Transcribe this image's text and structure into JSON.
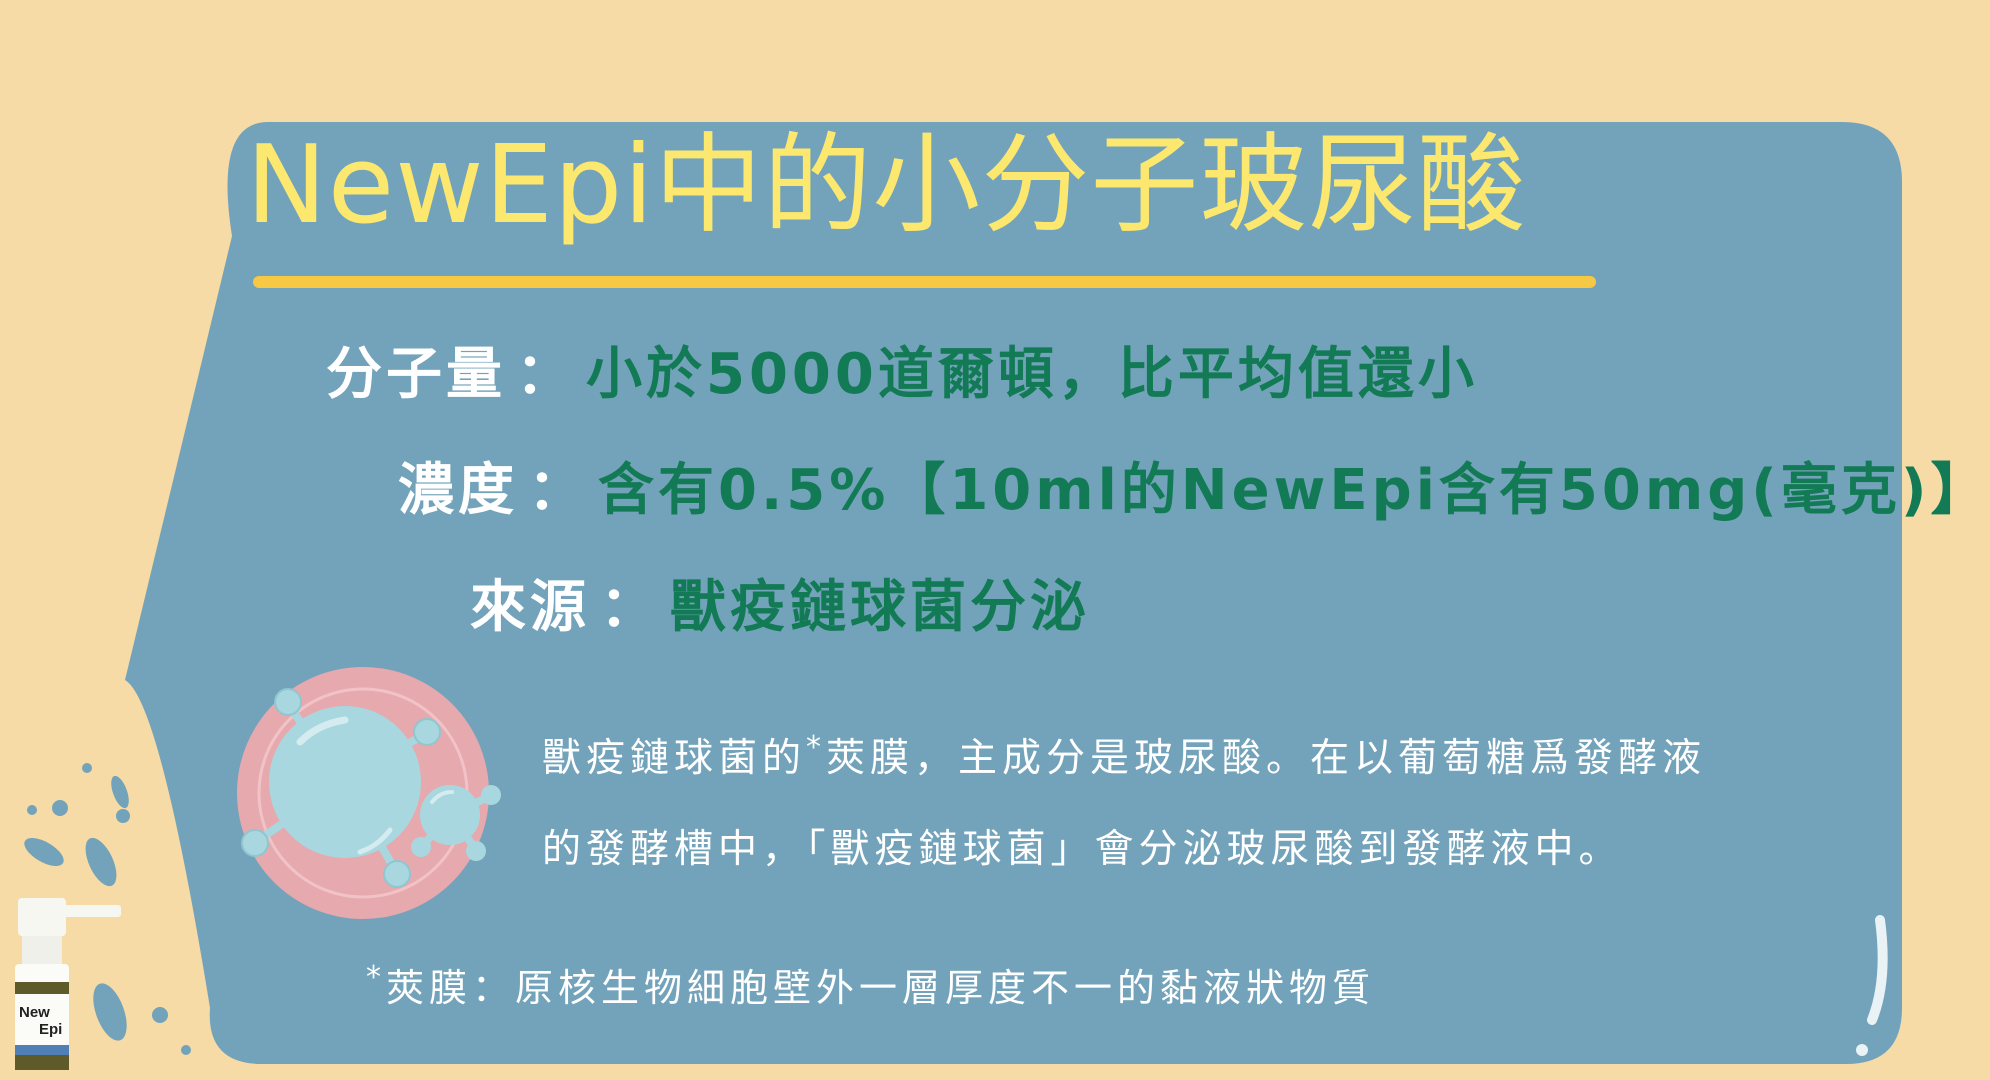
{
  "title": "NewEpi中的小分子玻尿酸",
  "specs": [
    {
      "label": "分子量",
      "sep": "：",
      "value": "小於5000道爾頓，比平均值還小"
    },
    {
      "label": "濃度",
      "sep": "：",
      "value": "含有0.5%【10ml的NewEpi含有50mg(毫克)】"
    },
    {
      "label": "來源",
      "sep": "：",
      "value": "獸疫鏈球菌分泌"
    }
  ],
  "description": {
    "line1_a": "獸疫鏈球菌的",
    "line1_star": "*",
    "line1_b": "莢膜，主成分是玻尿酸。在以葡萄糖爲發酵液",
    "line2": "的發酵槽中，「獸疫鏈球菌」會分泌玻尿酸到發酵液中。"
  },
  "footnote": {
    "star": "*",
    "text": "莢膜：原核生物細胞壁外一層厚度不一的黏液狀物質"
  },
  "product_logo": {
    "line1": "New",
    "line2": "Epi"
  },
  "colors": {
    "background": "#f6dba6",
    "panel": "#73a3ba",
    "title": "#fce86f",
    "underline": "#f6c843",
    "value_text": "#127a55",
    "bacteria_ring": "#e6a9ae",
    "bacteria_cell": "#a9d7df"
  },
  "icons": [
    "bacteria-illustration-icon",
    "spray-bottle-icon",
    "spray-droplets-icon"
  ]
}
